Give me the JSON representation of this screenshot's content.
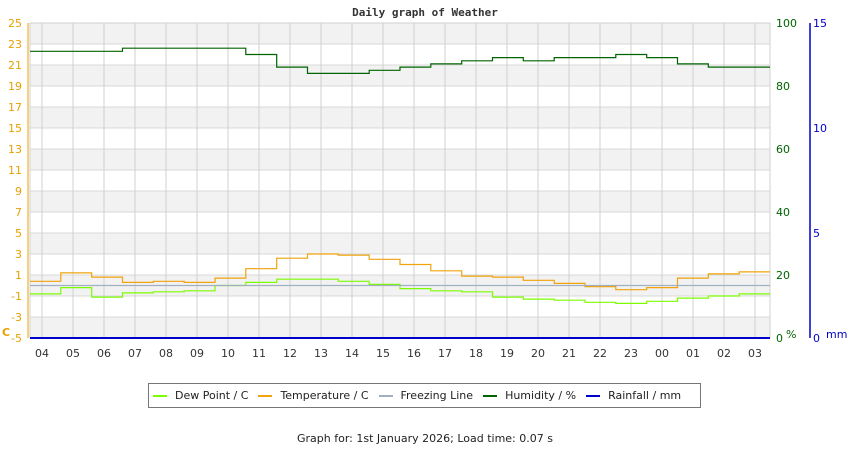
{
  "title": "Daily graph of Weather",
  "footer": "Graph for: 1st January 2026; Load time: 0.07 s",
  "legend": [
    {
      "label": "Dew Point / C",
      "color": "#7cfc00"
    },
    {
      "label": "Temperature / C",
      "color": "#f0a30a"
    },
    {
      "label": "Freezing Line",
      "color": "#a0b0c0"
    },
    {
      "label": "Humidity / %",
      "color": "#006400"
    },
    {
      "label": "Rainfall / mm",
      "color": "#0000cc"
    }
  ],
  "axes": {
    "left_unit": "C",
    "right_unit": "%",
    "far_right_unit": "mm"
  },
  "chart_data": {
    "type": "line",
    "title": "Daily graph of Weather",
    "xlabel": "",
    "x": [
      "04",
      "05",
      "06",
      "07",
      "08",
      "09",
      "10",
      "11",
      "12",
      "13",
      "14",
      "15",
      "16",
      "17",
      "18",
      "19",
      "20",
      "21",
      "22",
      "23",
      "00",
      "01",
      "02",
      "03"
    ],
    "y_left": {
      "label": "C",
      "ticks": [
        -5,
        -3,
        -1,
        1,
        3,
        5,
        7,
        9,
        11,
        13,
        15,
        17,
        19,
        21,
        23,
        25
      ],
      "range": [
        -5,
        25
      ],
      "color": "#e8a000"
    },
    "y_right": {
      "label": "%",
      "ticks": [
        0,
        20,
        40,
        60,
        80,
        100
      ],
      "range": [
        0,
        100
      ],
      "color": "#006400"
    },
    "y_far_right": {
      "label": "mm",
      "ticks": [
        0,
        5,
        10,
        15
      ],
      "range": [
        0,
        15
      ],
      "color": "#0000cc"
    },
    "grid": true,
    "legend_position": "bottom",
    "series": [
      {
        "name": "Dew Point / C",
        "axis": "left",
        "color": "#7cfc00",
        "values": [
          -0.8,
          -0.2,
          -1.1,
          -0.7,
          -0.6,
          -0.5,
          0.0,
          0.3,
          0.6,
          0.6,
          0.4,
          0.1,
          -0.3,
          -0.5,
          -0.6,
          -1.1,
          -1.3,
          -1.4,
          -1.6,
          -1.7,
          -1.5,
          -1.2,
          -1.0,
          -0.8
        ]
      },
      {
        "name": "Temperature / C",
        "axis": "left",
        "color": "#f0a30a",
        "values": [
          0.4,
          1.2,
          0.8,
          0.3,
          0.4,
          0.3,
          0.7,
          1.6,
          2.6,
          3.0,
          2.9,
          2.5,
          2.0,
          1.4,
          0.9,
          0.8,
          0.5,
          0.2,
          -0.1,
          -0.4,
          -0.2,
          0.7,
          1.1,
          1.3
        ]
      },
      {
        "name": "Freezing Line",
        "axis": "left",
        "color": "#a0b0c0",
        "values": [
          0,
          0,
          0,
          0,
          0,
          0,
          0,
          0,
          0,
          0,
          0,
          0,
          0,
          0,
          0,
          0,
          0,
          0,
          0,
          0,
          0,
          0,
          0,
          0
        ]
      },
      {
        "name": "Humidity / %",
        "axis": "right",
        "color": "#006400",
        "values": [
          91,
          91,
          91,
          92,
          92,
          92,
          92,
          90,
          86,
          84,
          84,
          85,
          86,
          87,
          88,
          89,
          88,
          89,
          89,
          90,
          89,
          87,
          86,
          86
        ]
      },
      {
        "name": "Rainfall / mm",
        "axis": "far_right",
        "color": "#0000cc",
        "values": [
          0,
          0,
          0,
          0,
          0,
          0,
          0,
          0,
          0,
          0,
          0,
          0,
          0,
          0,
          0,
          0,
          0,
          0,
          0,
          0,
          0,
          0,
          0,
          0
        ]
      }
    ]
  }
}
